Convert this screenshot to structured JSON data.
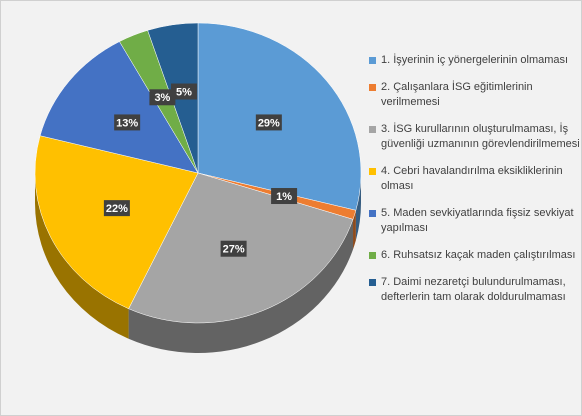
{
  "chart_data": {
    "type": "pie",
    "categories": [
      "1. İşyerinin iç yönergelerinin olmaması",
      "2. Çalışanlara İSG eğitimlerinin verilmemesi",
      "3. İSG kurullarının oluşturulmaması, İş güvenliği uzmanının görevlendirilmemesi",
      "4. Cebri havalandırılma eksikliklerinin olması",
      "5. Maden sevkiyatlarında fişsiz sevkiyat yapılması",
      "6. Ruhsatsız kaçak maden çalıştırılması",
      "7. Daimi nezaretçi bulundurulmaması, defterlerin tam olarak doldurulmaması"
    ],
    "values": [
      29,
      1,
      27,
      22,
      13,
      3,
      5
    ],
    "value_labels": [
      "29%",
      "1%",
      "27%",
      "22%",
      "13%",
      "3%",
      "5%"
    ],
    "colors": [
      "#5b9bd5",
      "#ed7d31",
      "#a5a5a5",
      "#ffc000",
      "#4472c4",
      "#70ad47",
      "#255e91"
    ],
    "legend": "right"
  }
}
